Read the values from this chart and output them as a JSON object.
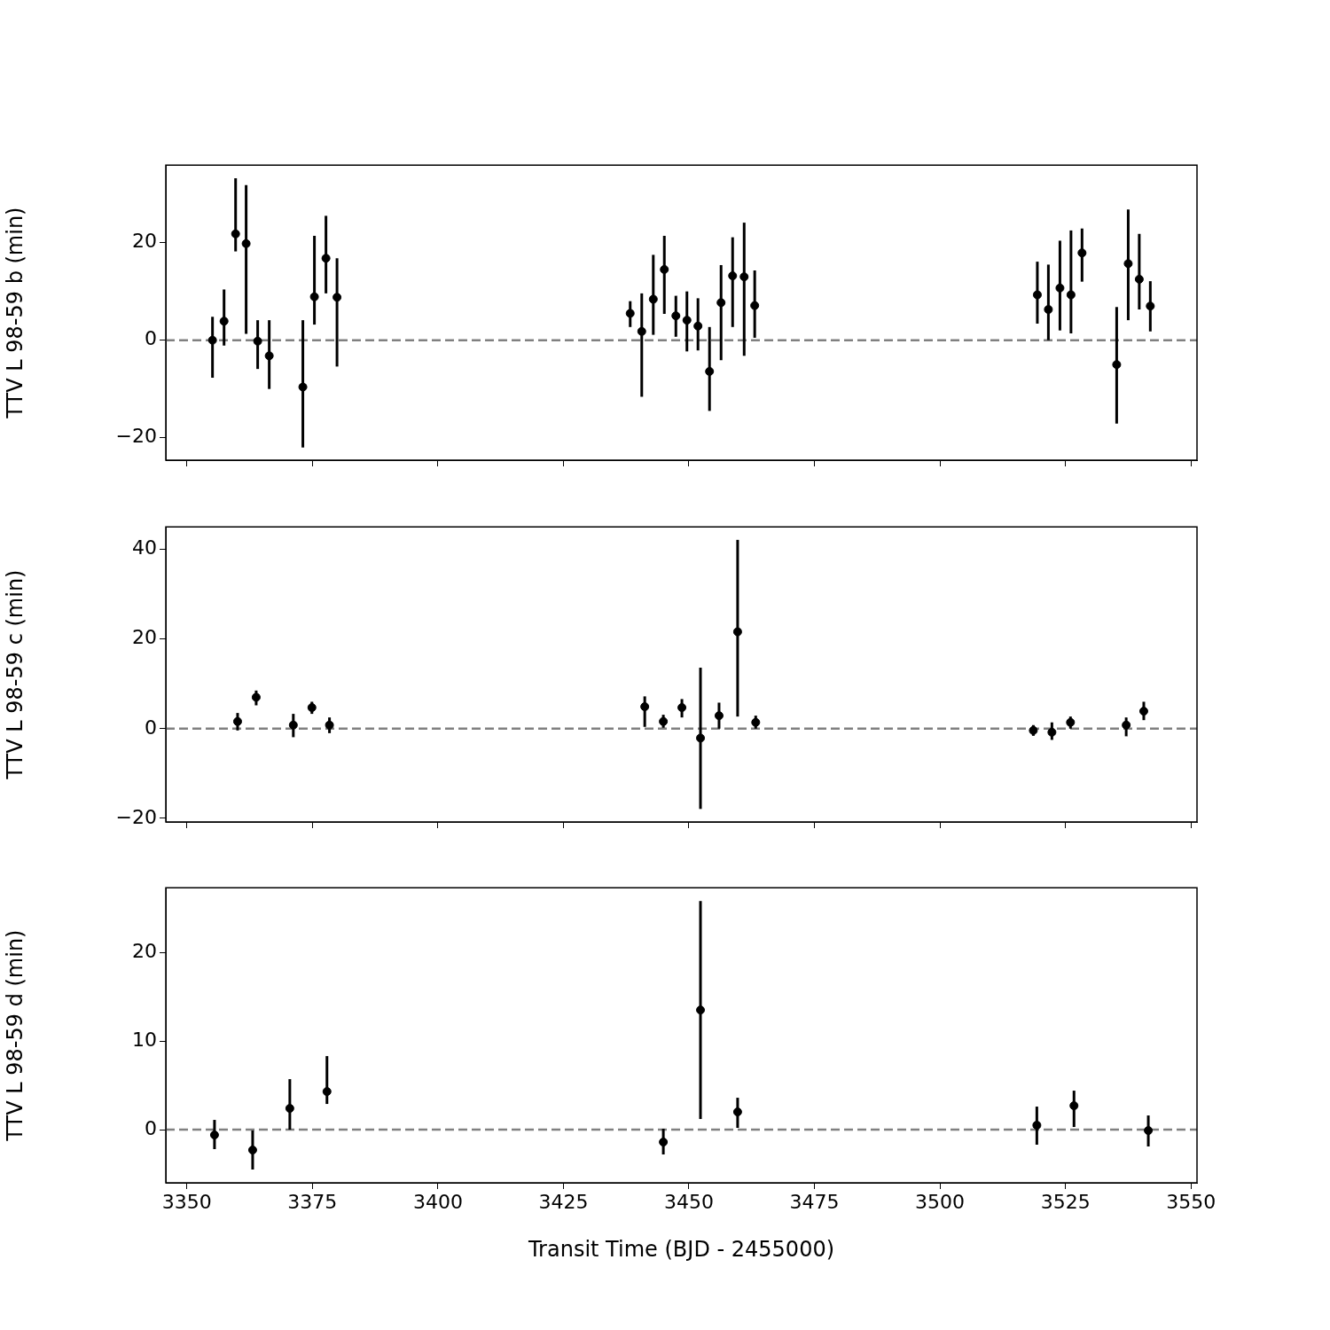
{
  "chart_data": [
    {
      "type": "scatter",
      "ylabel": "TTV L 98-59 b (min)",
      "color": "#000000",
      "marker": "circle",
      "tick_labels": "y",
      "xlim": [
        3345.8,
        3551.2
      ],
      "xticks": [
        3350,
        3375,
        3400,
        3425,
        3450,
        3475,
        3500,
        3525,
        3550
      ],
      "ylim": [
        -24.6,
        35.9
      ],
      "yticks": [
        -20,
        0,
        20
      ],
      "x": [
        3355.1,
        3357.4,
        3359.7,
        3361.8,
        3364.1,
        3366.4,
        3373.1,
        3375.4,
        3377.7,
        3379.9,
        3438.3,
        3440.6,
        3442.9,
        3445.1,
        3447.4,
        3449.6,
        3451.8,
        3454.1,
        3456.4,
        3458.7,
        3461.0,
        3463.1,
        3519.4,
        3521.6,
        3523.9,
        3526.1,
        3528.3,
        3535.2,
        3537.5,
        3539.7,
        3541.9
      ],
      "values": [
        0,
        3.9,
        21.8,
        19.8,
        -0.2,
        -3.2,
        -9.6,
        8.9,
        16.8,
        8.8,
        5.5,
        1.8,
        8.4,
        14.5,
        5.0,
        4.1,
        2.9,
        -6.4,
        7.7,
        13.2,
        13.0,
        7.1,
        9.3,
        6.3,
        10.7,
        9.3,
        17.9,
        -5.0,
        15.7,
        12.5,
        7.0
      ],
      "errors": [
        [
          -7.7,
          4.8
        ],
        [
          -1.1,
          10.4
        ],
        [
          18.2,
          33.2
        ],
        [
          1.3,
          31.8
        ],
        [
          -5.9,
          4.1
        ],
        [
          -10,
          4.1
        ],
        [
          -22,
          4.1
        ],
        [
          3.2,
          21.4
        ],
        [
          9.6,
          25.5
        ],
        [
          -5.4,
          16.8
        ],
        [
          2.7,
          8.0
        ],
        [
          -11.6,
          9.6
        ],
        [
          1.1,
          17.5
        ],
        [
          5.4,
          21.4
        ],
        [
          0.7,
          9.1
        ],
        [
          -2.3,
          10
        ],
        [
          -2.1,
          8.6
        ],
        [
          -14.5,
          2.7
        ],
        [
          -4.1,
          15.4
        ],
        [
          2.7,
          21.1
        ],
        [
          -3.2,
          24.1
        ],
        [
          0.5,
          14.3
        ],
        [
          3.4,
          16.1
        ],
        [
          0,
          15.5
        ],
        [
          2.0,
          20.4
        ],
        [
          1.4,
          22.5
        ],
        [
          12,
          22.9
        ],
        [
          -17.1,
          6.8
        ],
        [
          4.1,
          26.8
        ],
        [
          6.3,
          21.8
        ],
        [
          1.8,
          12.1
        ]
      ],
      "ref_lines": [
        {
          "axis": "y",
          "value": 0,
          "color": "#808080",
          "line_style": "dashed"
        }
      ]
    },
    {
      "type": "scatter",
      "ylabel": "TTV L 98-59 c (min)",
      "color": "#000000",
      "marker": "circle",
      "tick_labels": "y",
      "xlim": [
        3345.8,
        3551.2
      ],
      "xticks": [
        3350,
        3375,
        3400,
        3425,
        3450,
        3475,
        3500,
        3525,
        3550
      ],
      "ylim": [
        -20.8,
        45.0
      ],
      "yticks": [
        -20,
        0,
        20,
        40
      ],
      "x": [
        3360.1,
        3363.8,
        3371.2,
        3374.9,
        3378.4,
        3441.2,
        3444.9,
        3448.6,
        3452.3,
        3456.0,
        3459.7,
        3463.3,
        3518.6,
        3522.3,
        3526.0,
        3537.1,
        3540.6
      ],
      "values": [
        1.6,
        7.0,
        0.8,
        4.7,
        0.8,
        4.9,
        1.6,
        4.7,
        -2.1,
        2.9,
        21.6,
        1.4,
        -0.4,
        -0.8,
        1.4,
        0.8,
        3.9
      ],
      "errors": [
        [
          -0.4,
          3.5
        ],
        [
          5.2,
          8.5
        ],
        [
          -1.9,
          3.3
        ],
        [
          3.3,
          6.0
        ],
        [
          -1.0,
          2.5
        ],
        [
          0.4,
          7.2
        ],
        [
          0.2,
          3.1
        ],
        [
          2.5,
          6.6
        ],
        [
          -17.9,
          13.6
        ],
        [
          0,
          5.8
        ],
        [
          2.7,
          42.1
        ],
        [
          0,
          2.9
        ],
        [
          -1.6,
          0.8
        ],
        [
          -2.5,
          1.4
        ],
        [
          0,
          2.7
        ],
        [
          -1.7,
          2.5
        ],
        [
          1.9,
          6.0
        ]
      ],
      "ref_lines": [
        {
          "axis": "y",
          "value": 0,
          "color": "#808080",
          "line_style": "dashed"
        }
      ]
    },
    {
      "type": "scatter",
      "xlabel": "Transit Time (BJD - 2455000)",
      "ylabel": "TTV L 98-59 d (min)",
      "color": "#000000",
      "marker": "circle",
      "xlim": [
        3345.8,
        3551.2
      ],
      "xticks": [
        3350,
        3375,
        3400,
        3425,
        3450,
        3475,
        3500,
        3525,
        3550
      ],
      "ylim": [
        -6.0,
        27.3
      ],
      "yticks": [
        0,
        10,
        20
      ],
      "x": [
        3355.5,
        3363.1,
        3370.5,
        3377.9,
        3444.9,
        3452.3,
        3459.7,
        3519.3,
        3526.7,
        3541.5
      ],
      "values": [
        -0.6,
        -2.3,
        2.4,
        4.3,
        -1.4,
        13.5,
        2.0,
        0.5,
        2.7,
        -0.1
      ],
      "errors": [
        [
          -2.2,
          1.1
        ],
        [
          -4.5,
          -0.1
        ],
        [
          0,
          5.7
        ],
        [
          2.9,
          8.3
        ],
        [
          -2.8,
          0.1
        ],
        [
          1.2,
          25.8
        ],
        [
          0.2,
          3.6
        ],
        [
          -1.7,
          2.6
        ],
        [
          0.3,
          4.4
        ],
        [
          -1.9,
          1.6
        ]
      ],
      "ref_lines": [
        {
          "axis": "y",
          "value": 0,
          "color": "#808080",
          "line_style": "dashed"
        }
      ]
    }
  ]
}
